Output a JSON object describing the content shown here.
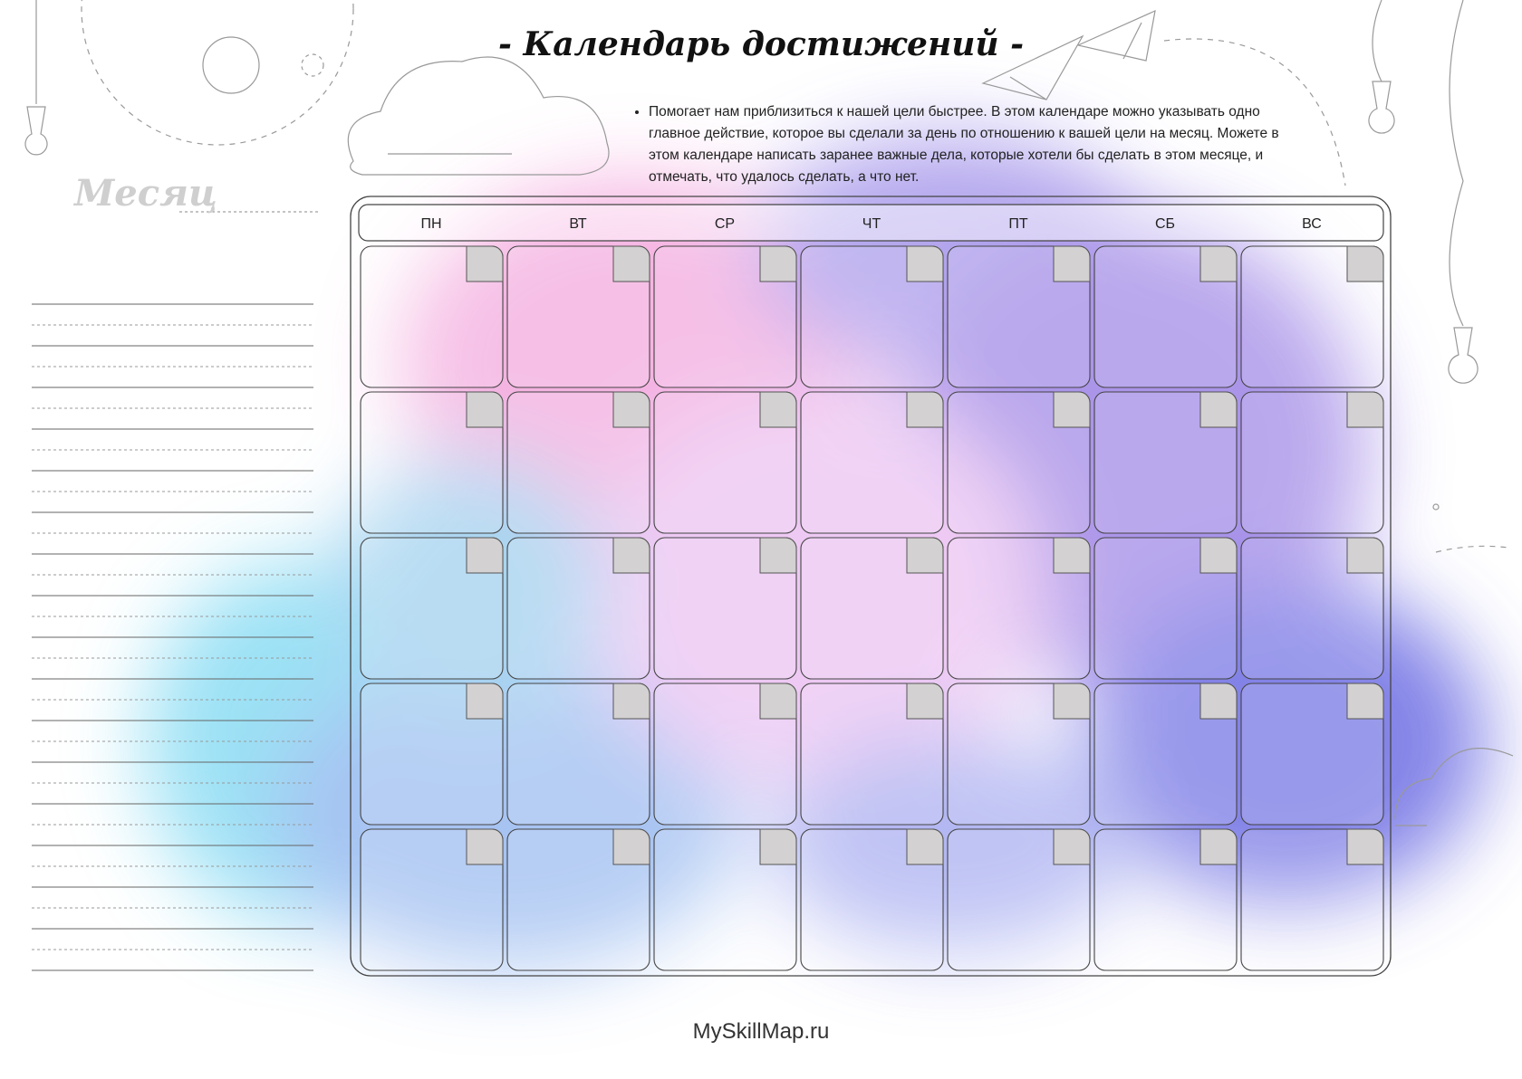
{
  "header": {
    "title": "- Календарь достижений -",
    "description": "Помогает нам приблизиться к нашей цели быстрее. В этом календаре можно указывать одно главное действие, которое вы сделали за день по отношению к вашей цели на месяц. Можете в этом календаре написать заранее важные дела, которые хотели бы сделать в этом месяце, и отмечать, что удалось сделать, а что нет."
  },
  "sidebar": {
    "month_label": "Месяц"
  },
  "calendar": {
    "weekdays": [
      "ПН",
      "ВТ",
      "СР",
      "ЧТ",
      "ПТ",
      "СБ",
      "ВС"
    ]
  },
  "footer": {
    "site": "MySkillMap.ru"
  }
}
